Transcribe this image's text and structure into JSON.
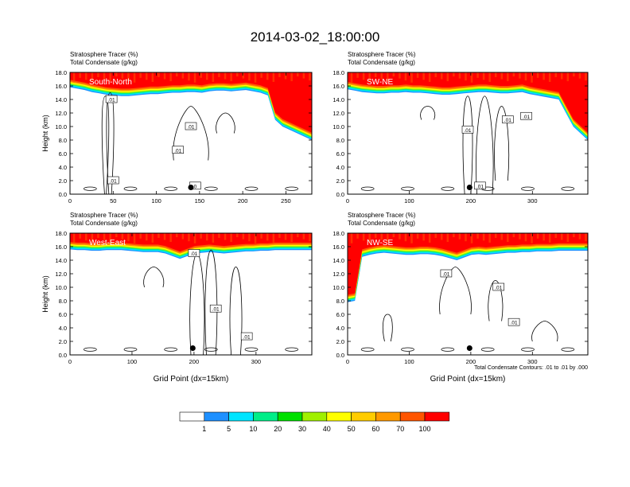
{
  "title": "2014-03-02_18:00:00",
  "chart_data": [
    {
      "type": "heatmap",
      "label": "South-North",
      "subtitle_line1": "Stratosphere Tracer   (%)",
      "subtitle_line2": "Total Condensate   (g/kg)",
      "ylabel": "Height (km)",
      "xlabel": "",
      "xlim": [
        0,
        280
      ],
      "ylim": [
        0,
        18
      ],
      "xticks": [
        0,
        50,
        100,
        150,
        200,
        250
      ],
      "yticks": [
        "0.0",
        "2.0",
        "4.0",
        "6.0",
        "8.0",
        "10.0",
        "12.0",
        "14.0",
        "16.0",
        "18.0"
      ],
      "contour_labels": [
        ".01",
        ".01",
        ".01",
        ".01",
        "0"
      ],
      "marker": {
        "x": 140,
        "y": 1.0
      },
      "tropopause_km": [
        15.8,
        15.6,
        15.4,
        15.1,
        14.9,
        14.7,
        14.6,
        14.5,
        14.5,
        14.6,
        14.7,
        14.8,
        14.8,
        14.9,
        15.0,
        15.0,
        15.1,
        15.1,
        15.0,
        15.2,
        15.3,
        15.3,
        15.2,
        15.3,
        15.4,
        15.2,
        15.0,
        14.6,
        11.0,
        10.0,
        9.5,
        9.0,
        8.5,
        8.0
      ]
    },
    {
      "type": "heatmap",
      "label": "SW-NE",
      "subtitle_line1": "Stratosphere Tracer   (%)",
      "subtitle_line2": "Total Condensate   (g/kg)",
      "ylabel": "",
      "xlabel": "",
      "xlim": [
        0,
        390
      ],
      "ylim": [
        0,
        18
      ],
      "xticks": [
        0,
        100,
        200,
        300
      ],
      "yticks": [
        "0.0",
        "2.0",
        "4.0",
        "6.0",
        "8.0",
        "10.0",
        "12.0",
        "14.0",
        "16.0",
        "18.0"
      ],
      "contour_labels": [
        ".01",
        ".01",
        ".01",
        ".01"
      ],
      "marker": {
        "x": 198,
        "y": 1.0
      },
      "tropopause_km": [
        15.5,
        15.3,
        15.1,
        15.0,
        14.9,
        14.9,
        15.0,
        15.0,
        15.1,
        15.0,
        15.0,
        14.9,
        14.8,
        14.7,
        14.7,
        14.8,
        14.9,
        15.0,
        15.1,
        15.1,
        15.0,
        14.9,
        14.9,
        15.0,
        15.1,
        14.8,
        14.6,
        14.4,
        14.2,
        14.0,
        12.0,
        10.0,
        9.0,
        8.0
      ]
    },
    {
      "type": "heatmap",
      "label": "West-East",
      "subtitle_line1": "Stratosphere Tracer   (%)",
      "subtitle_line2": "Total Condensate   (g/kg)",
      "ylabel": "Height (km)",
      "xlabel": "Grid Point (dx=15km)",
      "xlim": [
        0,
        390
      ],
      "ylim": [
        0,
        18
      ],
      "xticks": [
        0,
        100,
        200,
        300
      ],
      "yticks": [
        "0.0",
        "2.0",
        "4.0",
        "6.0",
        "8.0",
        "10.0",
        "12.0",
        "14.0",
        "16.0",
        "18.0"
      ],
      "contour_labels": [
        ".01",
        ".01",
        ".01"
      ],
      "marker": {
        "x": 198,
        "y": 1.0
      },
      "tropopause_km": [
        15.6,
        15.5,
        15.5,
        15.4,
        15.4,
        15.5,
        15.5,
        15.5,
        15.4,
        15.3,
        15.2,
        15.2,
        15.2,
        15.0,
        14.6,
        14.2,
        14.6,
        15.0,
        15.1,
        15.2,
        15.1,
        15.0,
        15.1,
        15.2,
        15.3,
        15.3,
        15.4,
        15.4,
        15.5,
        15.5,
        15.5,
        15.5,
        15.5,
        15.5
      ]
    },
    {
      "type": "heatmap",
      "label": "NW-SE",
      "subtitle_line1": "Stratosphere Tracer   (%)",
      "subtitle_line2": "Total Condensate   (g/kg)",
      "ylabel": "",
      "xlabel": "Grid Point (dx=15km)",
      "xlim": [
        0,
        390
      ],
      "ylim": [
        0,
        18
      ],
      "xticks": [
        0,
        100,
        200,
        300
      ],
      "yticks": [
        "0.0",
        "2.0",
        "4.0",
        "6.0",
        "8.0",
        "10.0",
        "12.0",
        "14.0",
        "16.0",
        "18.0"
      ],
      "contour_labels": [
        ".01",
        ".01",
        ".01"
      ],
      "marker": {
        "x": 198,
        "y": 1.0
      },
      "footnote": "Total Condensate Contours: .01 to .01 by .000",
      "tropopause_km": [
        7.8,
        8.0,
        14.5,
        14.8,
        15.0,
        15.1,
        15.0,
        14.9,
        14.8,
        14.8,
        14.9,
        14.9,
        14.8,
        14.6,
        14.3,
        14.0,
        14.4,
        14.8,
        14.9,
        14.8,
        14.9,
        15.0,
        15.1,
        15.1,
        15.2,
        15.2,
        15.3,
        15.3,
        15.3,
        15.4,
        15.4,
        15.4,
        15.4,
        15.4
      ]
    }
  ],
  "colorbar": {
    "ticks": [
      "1",
      "5",
      "10",
      "20",
      "30",
      "40",
      "50",
      "60",
      "70",
      "100"
    ],
    "colors": [
      "#ffffff",
      "#1e90ff",
      "#00e5ff",
      "#00ee88",
      "#00e000",
      "#a0f000",
      "#ffff00",
      "#ffcc00",
      "#ff9900",
      "#ff5500",
      "#ff0000"
    ]
  }
}
